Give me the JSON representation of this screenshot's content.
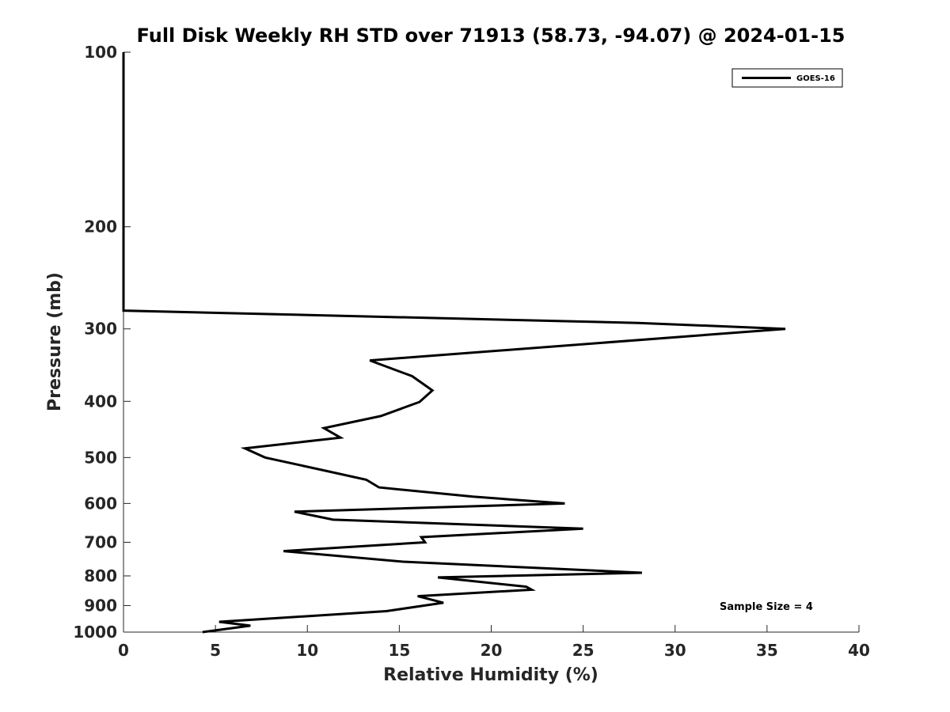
{
  "chart_data": {
    "type": "line",
    "title": "Full Disk Weekly RH STD over 71913 (58.73, -94.07) @ 2024-01-15",
    "xlabel": "Relative Humidity (%)",
    "ylabel": "Pressure (mb)",
    "xlim": [
      0,
      40
    ],
    "ylim": [
      100,
      1000
    ],
    "yscale": "log",
    "y_reversed": true,
    "x_ticks": [
      0,
      5,
      10,
      15,
      20,
      25,
      30,
      35,
      40
    ],
    "y_ticks": [
      100,
      200,
      300,
      400,
      500,
      600,
      700,
      800,
      900,
      1000
    ],
    "grid": false,
    "legend_position": "top-right",
    "series": [
      {
        "name": "GOES-16",
        "color": "#000000",
        "x": [
          0,
          0,
          0,
          0,
          0,
          0,
          28,
          36,
          13.4,
          15.7,
          16.8,
          16.1,
          14,
          10.9,
          11.8,
          6.6,
          7.7,
          11,
          13.2,
          13.9,
          19,
          24,
          9.3,
          11.4,
          25,
          16.2,
          16.4,
          8.7,
          15.2,
          28.2,
          17.1,
          21.9,
          22.2,
          16,
          17.4,
          14.3,
          5.2,
          6.9,
          4.3
        ],
        "y": [
          100,
          150,
          200,
          250,
          270,
          279,
          293,
          300,
          340,
          362,
          383,
          401,
          424,
          445,
          462,
          482,
          500,
          527,
          546,
          563,
          584,
          600,
          620,
          640,
          663,
          686,
          700,
          725,
          756,
          790,
          805,
          835,
          845,
          867,
          890,
          920,
          960,
          975,
          1000
        ]
      }
    ],
    "annotations": [
      "Sample Size = 4"
    ]
  }
}
